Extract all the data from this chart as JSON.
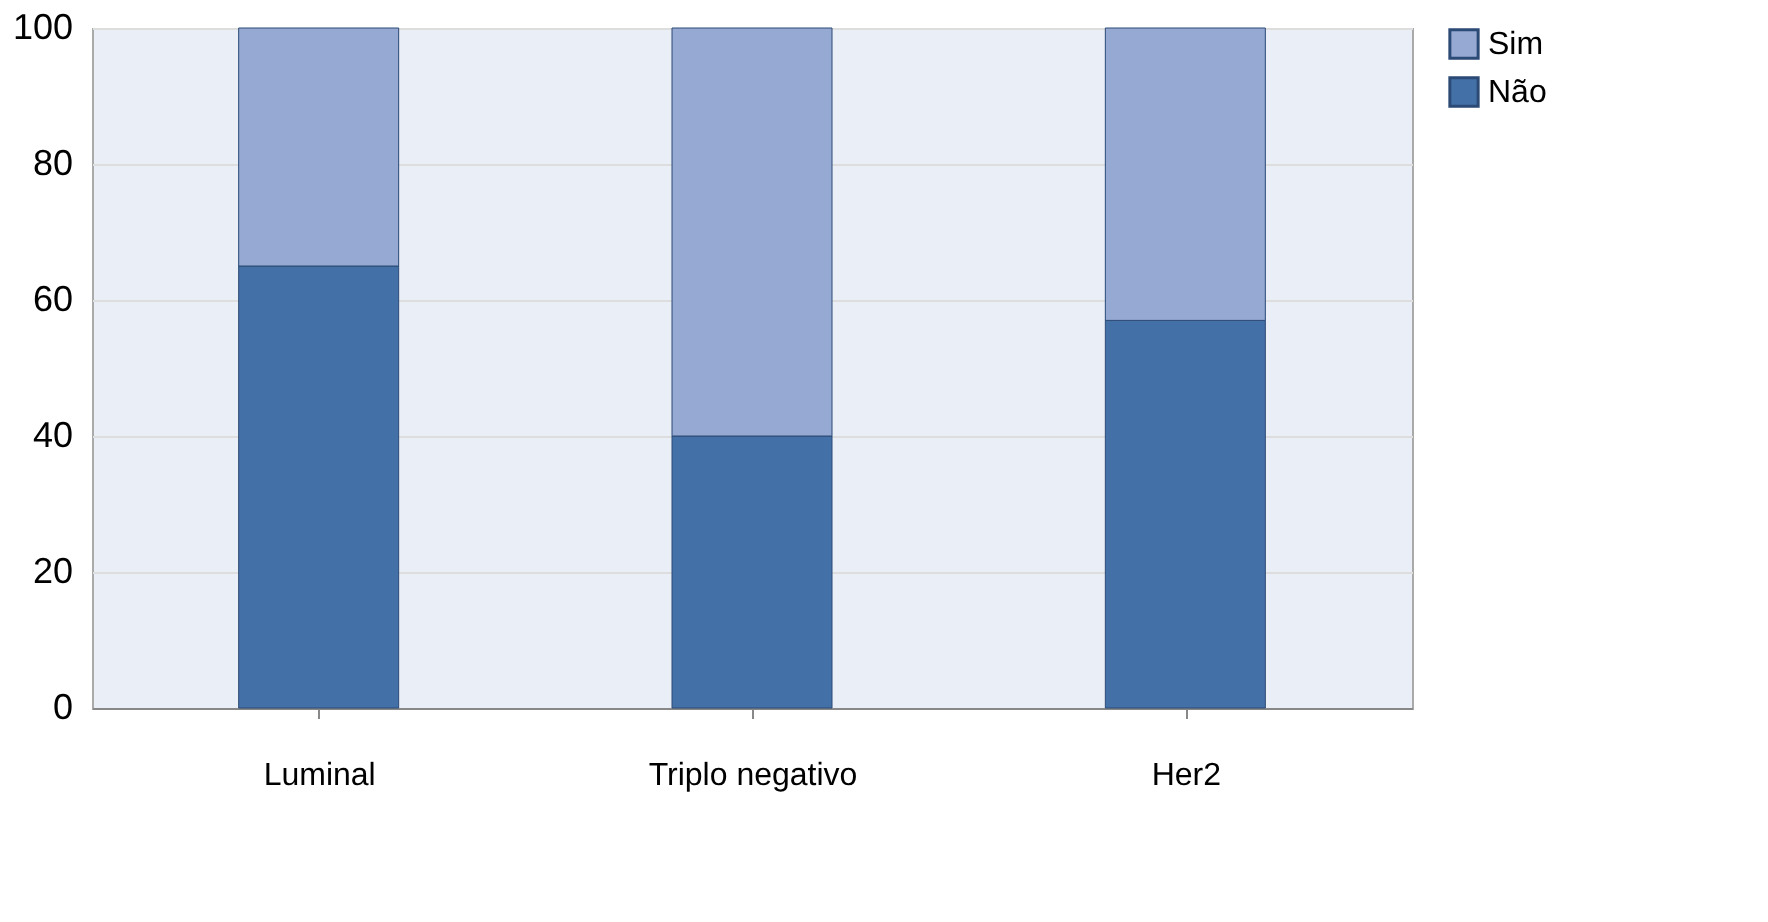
{
  "chart_data": {
    "type": "bar",
    "stacked": true,
    "categories": [
      "Luminal",
      "Triplo negativo",
      "Her2"
    ],
    "series": [
      {
        "name": "Não",
        "color": "#4470a8",
        "values": [
          65,
          40,
          57
        ]
      },
      {
        "name": "Sim",
        "color": "#95a9d3",
        "values": [
          35,
          60,
          43
        ]
      }
    ],
    "ylim": [
      0,
      100
    ],
    "yticks": [
      0,
      20,
      40,
      60,
      80,
      100
    ],
    "grid": "y",
    "legend": "right"
  }
}
